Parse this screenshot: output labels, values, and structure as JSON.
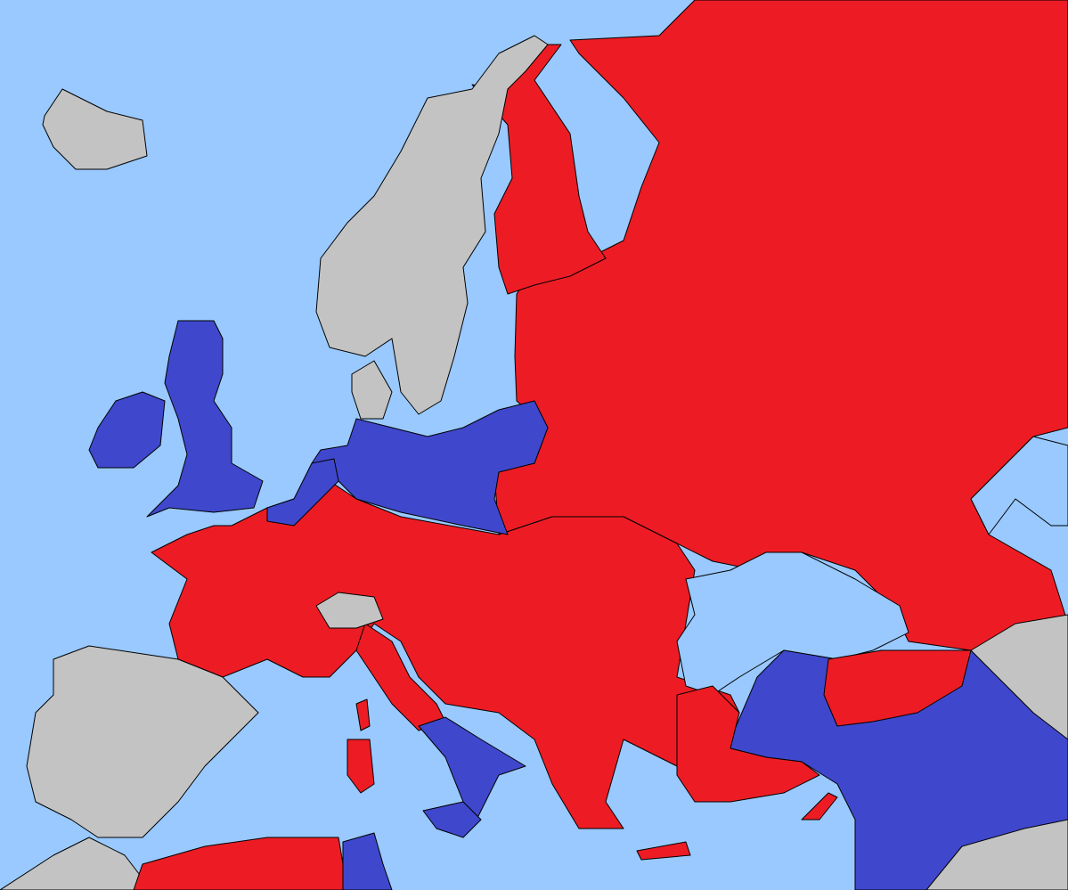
{
  "map": {
    "colors": {
      "sea": "#99C9FF",
      "red": "#ED1C24",
      "blue": "#3F48CC",
      "neutral": "#C3C3C3",
      "border": "#000000"
    },
    "regions": [
      {
        "id": "iceland",
        "fill": "neutral"
      },
      {
        "id": "russia",
        "fill": "red"
      },
      {
        "id": "finland",
        "fill": "red"
      },
      {
        "id": "scandinavia",
        "fill": "neutral"
      },
      {
        "id": "denmark",
        "fill": "neutral"
      },
      {
        "id": "continental-europe",
        "fill": "red"
      },
      {
        "id": "italy-north",
        "fill": "red"
      },
      {
        "id": "italy-south",
        "fill": "blue"
      },
      {
        "id": "sicily",
        "fill": "blue"
      },
      {
        "id": "sardinia",
        "fill": "red"
      },
      {
        "id": "corsica",
        "fill": "red"
      },
      {
        "id": "switzerland",
        "fill": "neutral"
      },
      {
        "id": "great-britain",
        "fill": "blue"
      },
      {
        "id": "ireland",
        "fill": "blue"
      },
      {
        "id": "germany",
        "fill": "blue"
      },
      {
        "id": "benelux",
        "fill": "blue"
      },
      {
        "id": "iberia",
        "fill": "neutral"
      },
      {
        "id": "morocco",
        "fill": "neutral"
      },
      {
        "id": "algeria",
        "fill": "red"
      },
      {
        "id": "tunisia",
        "fill": "blue"
      },
      {
        "id": "anatolia-west",
        "fill": "red"
      },
      {
        "id": "anatolia-east",
        "fill": "blue"
      },
      {
        "id": "caucasus",
        "fill": "red"
      },
      {
        "id": "persia",
        "fill": "neutral"
      },
      {
        "id": "arabia",
        "fill": "neutral"
      },
      {
        "id": "crete",
        "fill": "red"
      },
      {
        "id": "cyprus",
        "fill": "red"
      }
    ]
  }
}
